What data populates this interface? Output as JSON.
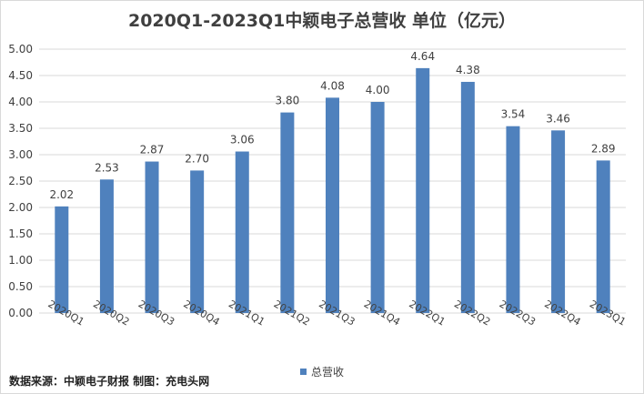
{
  "colors": {
    "bar": "#4f81bd",
    "grid": "#d9d9d9",
    "text": "#404040"
  },
  "legend": {
    "label": "总营收"
  },
  "footer": {
    "source": "数据来源：中颖电子财报 制图：充电头网"
  },
  "chart_data": {
    "type": "bar",
    "title": "2020Q1-2023Q1中颖电子总营收 单位（亿元）",
    "xlabel": "",
    "ylabel": "",
    "ylim": [
      0,
      5
    ],
    "yticks": [
      "0.00",
      "0.50",
      "1.00",
      "1.50",
      "2.00",
      "2.50",
      "3.00",
      "3.50",
      "4.00",
      "4.50",
      "5.00"
    ],
    "grid": true,
    "legend_position": "bottom",
    "categories": [
      "2020Q1",
      "2020Q2",
      "2020Q3",
      "2020Q4",
      "2021Q1",
      "2021Q2",
      "2021Q3",
      "2021Q4",
      "2022Q1",
      "2022Q2",
      "2022Q3",
      "2022Q4",
      "2023Q1"
    ],
    "series": [
      {
        "name": "总营收",
        "values": [
          2.02,
          2.53,
          2.87,
          2.7,
          3.06,
          3.8,
          4.08,
          4.0,
          4.64,
          4.38,
          3.54,
          3.46,
          2.89
        ],
        "labels": [
          "2.02",
          "2.53",
          "2.87",
          "2.70",
          "3.06",
          "3.80",
          "4.08",
          "4.00",
          "4.64",
          "4.38",
          "3.54",
          "3.46",
          "2.89"
        ]
      }
    ]
  }
}
